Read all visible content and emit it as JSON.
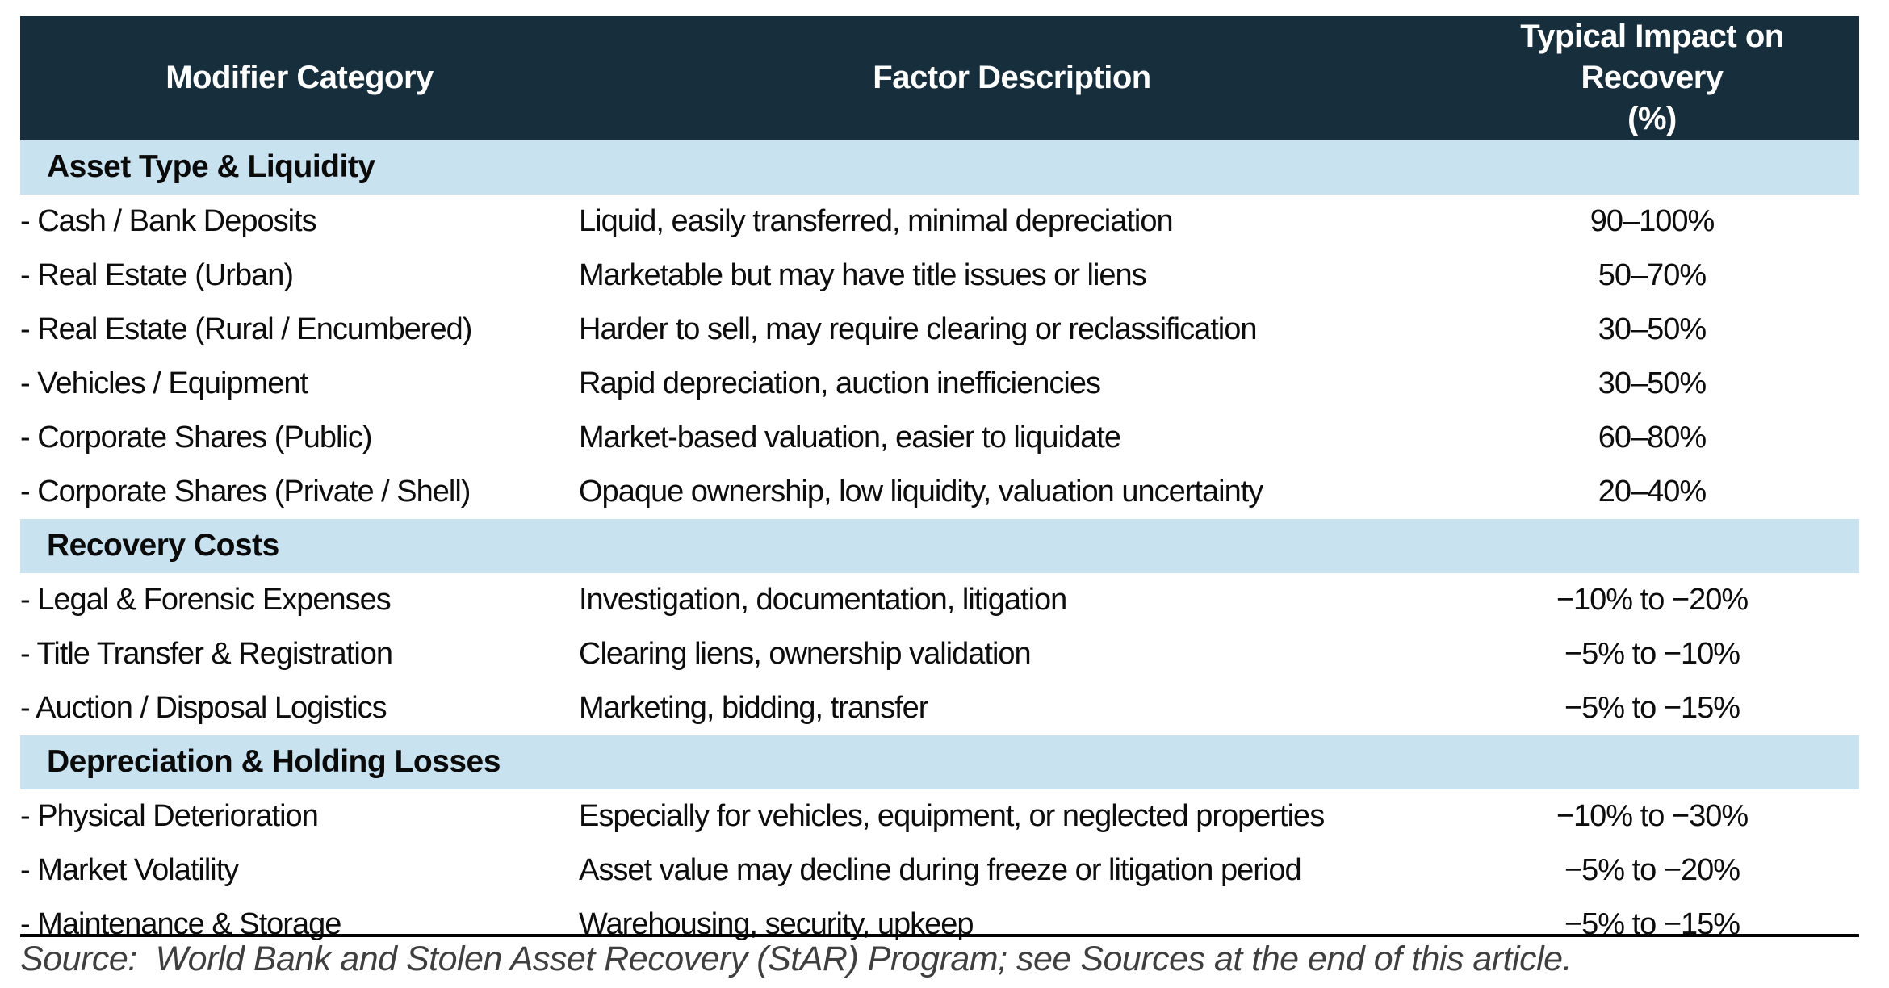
{
  "chart_data": {
    "type": "table",
    "title": "Asset recovery modifier factors",
    "columns": [
      "Modifier Category",
      "Factor Description",
      "Typical Impact on Recovery (%)"
    ],
    "impact_header_lines": [
      "Typical Impact on Recovery",
      "(%)"
    ],
    "sections": [
      {
        "title": "Asset Type & Liquidity",
        "rows": [
          {
            "category": "- Cash / Bank Deposits",
            "description": "Liquid, easily transferred, minimal depreciation",
            "impact": "90–100%"
          },
          {
            "category": "- Real Estate (Urban)",
            "description": "Marketable but may have title issues or liens",
            "impact": "50–70%"
          },
          {
            "category": "- Real Estate (Rural / Encumbered)",
            "description": "Harder to sell, may require clearing or reclassification",
            "impact": "30–50%"
          },
          {
            "category": "- Vehicles / Equipment",
            "description": "Rapid depreciation, auction inefficiencies",
            "impact": "30–50%"
          },
          {
            "category": "- Corporate Shares (Public)",
            "description": "Market-based valuation, easier to liquidate",
            "impact": "60–80%"
          },
          {
            "category": "- Corporate Shares (Private / Shell)",
            "description": "Opaque ownership, low liquidity, valuation uncertainty",
            "impact": "20–40%"
          }
        ]
      },
      {
        "title": "Recovery Costs",
        "rows": [
          {
            "category": "- Legal & Forensic Expenses",
            "description": "Investigation, documentation, litigation",
            "impact": "−10% to −20%"
          },
          {
            "category": "- Title Transfer & Registration",
            "description": "Clearing liens, ownership validation",
            "impact": "−5% to −10%"
          },
          {
            "category": "- Auction / Disposal Logistics",
            "description": "Marketing, bidding, transfer",
            "impact": "−5% to −15%"
          }
        ]
      },
      {
        "title": "Depreciation & Holding Losses",
        "rows": [
          {
            "category": "- Physical Deterioration",
            "description": "Especially for vehicles, equipment, or neglected properties",
            "impact": "−10% to −30%"
          },
          {
            "category": "- Market Volatility",
            "description": "Asset value may decline during freeze or litigation period",
            "impact": "−5% to −20%"
          },
          {
            "category": "- Maintenance & Storage",
            "description": "Warehousing, security, upkeep",
            "impact": "−5% to −15%"
          }
        ]
      }
    ],
    "layout": {
      "grid": "off",
      "section_band_color": "#C9E2F0",
      "header_band_color": "#172E3D"
    }
  },
  "footer": {
    "source": "Source:  World Bank and Stolen Asset Recovery (StAR) Program; see Sources at the end of this article."
  },
  "colors": {
    "header_bg": "#172E3D",
    "header_text": "#FFFFFF",
    "section_bg": "#C9E2F0",
    "body_text": "#0D0D0D",
    "source_text": "#3F3F3F",
    "rule": "#000000"
  }
}
